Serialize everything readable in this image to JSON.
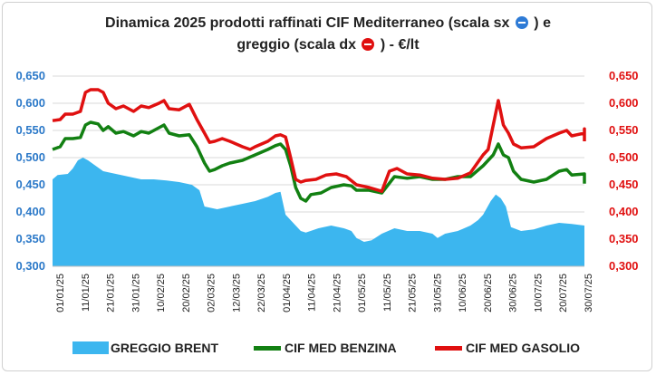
{
  "title_line1": "Dinamica 2025 prodotti raffinati CIF Mediterraneo (scala sx",
  "title_line1_end": ") e",
  "title_line2": "greggio (scala dx",
  "title_line2_end": ") - €/lt",
  "colors": {
    "brent": "#3cb6ef",
    "benzina": "#128012",
    "gasolio": "#e01010",
    "left_axis": "#2a78c8",
    "right_axis": "#e01010"
  },
  "chart_data": {
    "type": "line",
    "y_left_ticks": [
      "0,300",
      "0,350",
      "0,400",
      "0,450",
      "0,500",
      "0,550",
      "0,600",
      "0,650"
    ],
    "y_right_ticks": [
      "0,300",
      "0,350",
      "0,400",
      "0,450",
      "0,500",
      "0,550",
      "0,600",
      "0,650"
    ],
    "ylim_left": [
      0.3,
      0.65
    ],
    "ylim_right": [
      0.3,
      0.65
    ],
    "x_ticks": [
      "01/01/25",
      "11/01/25",
      "21/01/25",
      "31/01/25",
      "10/02/25",
      "20/02/25",
      "02/03/25",
      "12/03/25",
      "22/03/25",
      "01/04/25",
      "11/04/25",
      "21/04/25",
      "01/05/25",
      "11/05/25",
      "21/05/25",
      "31/05/25",
      "10/06/25",
      "20/06/25",
      "30/06/25",
      "10/07/25",
      "20/07/25",
      "30/07/25"
    ],
    "series": [
      {
        "name": "GREGGIO BRENT",
        "kind": "area",
        "axis": "right",
        "points": [
          [
            0,
            0.46
          ],
          [
            2,
            0.468
          ],
          [
            6,
            0.47
          ],
          [
            8,
            0.48
          ],
          [
            10,
            0.495
          ],
          [
            12,
            0.5
          ],
          [
            14,
            0.495
          ],
          [
            17,
            0.485
          ],
          [
            20,
            0.475
          ],
          [
            25,
            0.47
          ],
          [
            30,
            0.465
          ],
          [
            35,
            0.46
          ],
          [
            40,
            0.46
          ],
          [
            45,
            0.458
          ],
          [
            50,
            0.455
          ],
          [
            55,
            0.45
          ],
          [
            58,
            0.44
          ],
          [
            60,
            0.41
          ],
          [
            65,
            0.405
          ],
          [
            70,
            0.41
          ],
          [
            75,
            0.415
          ],
          [
            80,
            0.42
          ],
          [
            85,
            0.428
          ],
          [
            88,
            0.435
          ],
          [
            90,
            0.437
          ],
          [
            92,
            0.395
          ],
          [
            95,
            0.38
          ],
          [
            98,
            0.365
          ],
          [
            100,
            0.362
          ],
          [
            105,
            0.37
          ],
          [
            110,
            0.375
          ],
          [
            115,
            0.37
          ],
          [
            118,
            0.365
          ],
          [
            120,
            0.352
          ],
          [
            123,
            0.345
          ],
          [
            126,
            0.348
          ],
          [
            130,
            0.36
          ],
          [
            135,
            0.37
          ],
          [
            140,
            0.365
          ],
          [
            145,
            0.365
          ],
          [
            150,
            0.36
          ],
          [
            152,
            0.352
          ],
          [
            155,
            0.36
          ],
          [
            160,
            0.365
          ],
          [
            165,
            0.375
          ],
          [
            168,
            0.385
          ],
          [
            170,
            0.395
          ],
          [
            173,
            0.42
          ],
          [
            175,
            0.432
          ],
          [
            177,
            0.425
          ],
          [
            179,
            0.41
          ],
          [
            181,
            0.372
          ],
          [
            185,
            0.365
          ],
          [
            190,
            0.368
          ],
          [
            195,
            0.375
          ],
          [
            200,
            0.38
          ],
          [
            205,
            0.378
          ],
          [
            210,
            0.375
          ],
          [
            215,
            0.372
          ],
          [
            218,
            0.37
          ]
        ]
      },
      {
        "name": "CIF MED BENZINA",
        "kind": "line",
        "axis": "left",
        "points": [
          [
            0,
            0.515
          ],
          [
            3,
            0.52
          ],
          [
            5,
            0.535
          ],
          [
            8,
            0.535
          ],
          [
            11,
            0.537
          ],
          [
            13,
            0.56
          ],
          [
            15,
            0.565
          ],
          [
            18,
            0.562
          ],
          [
            20,
            0.55
          ],
          [
            22,
            0.557
          ],
          [
            25,
            0.545
          ],
          [
            28,
            0.548
          ],
          [
            32,
            0.54
          ],
          [
            35,
            0.548
          ],
          [
            38,
            0.545
          ],
          [
            42,
            0.555
          ],
          [
            44,
            0.56
          ],
          [
            46,
            0.545
          ],
          [
            50,
            0.54
          ],
          [
            54,
            0.542
          ],
          [
            57,
            0.52
          ],
          [
            60,
            0.49
          ],
          [
            62,
            0.475
          ],
          [
            64,
            0.478
          ],
          [
            67,
            0.485
          ],
          [
            70,
            0.49
          ],
          [
            75,
            0.495
          ],
          [
            80,
            0.505
          ],
          [
            85,
            0.515
          ],
          [
            88,
            0.522
          ],
          [
            90,
            0.525
          ],
          [
            92,
            0.515
          ],
          [
            94,
            0.485
          ],
          [
            96,
            0.445
          ],
          [
            98,
            0.425
          ],
          [
            100,
            0.42
          ],
          [
            102,
            0.432
          ],
          [
            106,
            0.435
          ],
          [
            110,
            0.445
          ],
          [
            115,
            0.45
          ],
          [
            118,
            0.448
          ],
          [
            120,
            0.44
          ],
          [
            125,
            0.44
          ],
          [
            130,
            0.435
          ],
          [
            135,
            0.465
          ],
          [
            140,
            0.462
          ],
          [
            145,
            0.465
          ],
          [
            150,
            0.46
          ],
          [
            155,
            0.46
          ],
          [
            160,
            0.465
          ],
          [
            165,
            0.465
          ],
          [
            170,
            0.485
          ],
          [
            172,
            0.495
          ],
          [
            174,
            0.505
          ],
          [
            176,
            0.525
          ],
          [
            178,
            0.505
          ],
          [
            180,
            0.5
          ],
          [
            182,
            0.475
          ],
          [
            185,
            0.46
          ],
          [
            190,
            0.455
          ],
          [
            195,
            0.46
          ],
          [
            200,
            0.475
          ],
          [
            203,
            0.478
          ],
          [
            205,
            0.468
          ],
          [
            210,
            0.47
          ],
          [
            213,
            0.465
          ],
          [
            215,
            0.458
          ],
          [
            218,
            0.452
          ]
        ]
      },
      {
        "name": "CIF MED GASOLIO",
        "kind": "line",
        "axis": "left",
        "points": [
          [
            0,
            0.568
          ],
          [
            3,
            0.57
          ],
          [
            5,
            0.58
          ],
          [
            8,
            0.58
          ],
          [
            11,
            0.585
          ],
          [
            13,
            0.62
          ],
          [
            15,
            0.625
          ],
          [
            18,
            0.625
          ],
          [
            20,
            0.62
          ],
          [
            22,
            0.6
          ],
          [
            25,
            0.59
          ],
          [
            28,
            0.595
          ],
          [
            32,
            0.585
          ],
          [
            35,
            0.595
          ],
          [
            38,
            0.592
          ],
          [
            42,
            0.6
          ],
          [
            44,
            0.605
          ],
          [
            46,
            0.59
          ],
          [
            50,
            0.588
          ],
          [
            54,
            0.598
          ],
          [
            57,
            0.57
          ],
          [
            60,
            0.545
          ],
          [
            62,
            0.528
          ],
          [
            64,
            0.53
          ],
          [
            67,
            0.535
          ],
          [
            70,
            0.53
          ],
          [
            75,
            0.52
          ],
          [
            78,
            0.515
          ],
          [
            80,
            0.52
          ],
          [
            85,
            0.53
          ],
          [
            88,
            0.54
          ],
          [
            90,
            0.542
          ],
          [
            92,
            0.538
          ],
          [
            94,
            0.5
          ],
          [
            96,
            0.46
          ],
          [
            98,
            0.455
          ],
          [
            100,
            0.458
          ],
          [
            104,
            0.46
          ],
          [
            108,
            0.468
          ],
          [
            112,
            0.47
          ],
          [
            116,
            0.465
          ],
          [
            120,
            0.45
          ],
          [
            125,
            0.445
          ],
          [
            130,
            0.438
          ],
          [
            133,
            0.475
          ],
          [
            136,
            0.48
          ],
          [
            140,
            0.47
          ],
          [
            145,
            0.468
          ],
          [
            150,
            0.462
          ],
          [
            155,
            0.46
          ],
          [
            160,
            0.462
          ],
          [
            165,
            0.472
          ],
          [
            170,
            0.505
          ],
          [
            172,
            0.515
          ],
          [
            174,
            0.56
          ],
          [
            176,
            0.605
          ],
          [
            178,
            0.56
          ],
          [
            180,
            0.545
          ],
          [
            182,
            0.525
          ],
          [
            185,
            0.518
          ],
          [
            190,
            0.52
          ],
          [
            195,
            0.535
          ],
          [
            200,
            0.545
          ],
          [
            203,
            0.55
          ],
          [
            205,
            0.54
          ],
          [
            210,
            0.545
          ],
          [
            213,
            0.553
          ],
          [
            215,
            0.54
          ],
          [
            218,
            0.53
          ]
        ]
      }
    ],
    "x_domain": [
      0,
      210
    ]
  }
}
